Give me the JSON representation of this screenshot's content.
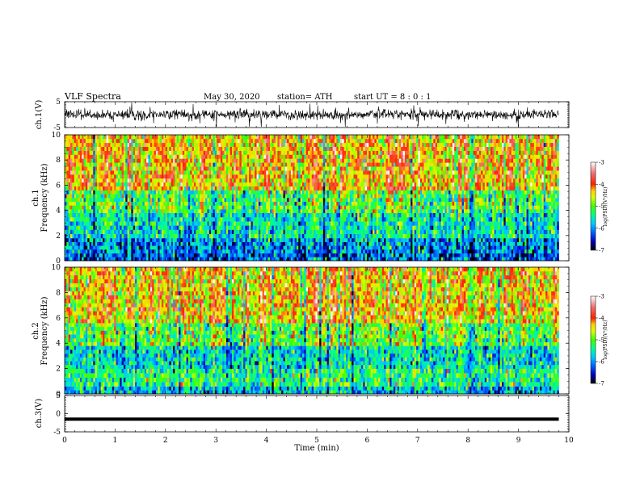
{
  "header": {
    "title": "VLF  Spectra",
    "date": "May 30, 2020",
    "station": "station= ATH",
    "start": "start  UT  =   8  : 0   : 1"
  },
  "chart_data": [
    {
      "type": "line",
      "name": "ch1-waveform",
      "ylabel": "ch.1(V)",
      "ylim": [
        -5,
        5
      ],
      "yticks": [
        5,
        -5
      ],
      "x_range": [
        0,
        9.8
      ],
      "description_values": {
        "mean": 0,
        "envelope_low": -3,
        "envelope_high": 3
      }
    },
    {
      "type": "heatmap",
      "name": "ch1-spectrogram",
      "ylabel": "ch.1\nFrequency  (kHz)",
      "ylabel_lines": [
        "ch.1",
        "Frequency  (kHz)"
      ],
      "ylim": [
        0,
        10
      ],
      "yticks": [
        0,
        2,
        4,
        6,
        8,
        10
      ],
      "x_range": [
        0,
        9.8
      ],
      "bands": [
        {
          "f_low": 0,
          "f_high": 0.6,
          "log_psd": -6.2
        },
        {
          "f_low": 0.6,
          "f_high": 1.8,
          "log_psd": -6.0
        },
        {
          "f_low": 1.8,
          "f_high": 3.8,
          "log_psd": -5.5
        },
        {
          "f_low": 3.8,
          "f_high": 5.6,
          "log_psd": -5.0
        },
        {
          "f_low": 5.6,
          "f_high": 10,
          "log_psd": -4.2
        }
      ]
    },
    {
      "type": "heatmap",
      "name": "ch2-spectrogram",
      "ylabel": "ch.2\nFrequency  (kHz)",
      "ylabel_lines": [
        "ch.2",
        "Frequency  (kHz)"
      ],
      "ylim": [
        0,
        10
      ],
      "yticks": [
        0,
        2,
        4,
        6,
        8,
        10
      ],
      "x_range": [
        0,
        9.8
      ],
      "bands": [
        {
          "f_low": 0,
          "f_high": 0.6,
          "log_psd": -5.8
        },
        {
          "f_low": 0.6,
          "f_high": 2.0,
          "log_psd": -5.3
        },
        {
          "f_low": 2.0,
          "f_high": 3.8,
          "log_psd": -5.6
        },
        {
          "f_low": 3.8,
          "f_high": 5.6,
          "log_psd": -5.0
        },
        {
          "f_low": 5.6,
          "f_high": 10,
          "log_psd": -4.3
        }
      ]
    },
    {
      "type": "line",
      "name": "ch3-waveform",
      "ylabel": "ch.3(V)",
      "ylim": [
        -5,
        5
      ],
      "yticks": [
        5,
        0,
        -5
      ],
      "x_range": [
        0,
        9.8
      ],
      "constant_value": -1.5
    }
  ],
  "xaxis": {
    "label": "Time  (min)",
    "xlim": [
      0,
      10
    ],
    "ticks": [
      0,
      1,
      2,
      3,
      4,
      5,
      6,
      7,
      8,
      9,
      10
    ]
  },
  "colorbar": {
    "label": "log(PSD)(V²/Hz)",
    "range": [
      -7,
      -3
    ],
    "ticks": [
      -3,
      -4,
      -5,
      -6,
      -7
    ],
    "stops": [
      {
        "v": -7.0,
        "color": "#000000"
      },
      {
        "v": -6.6,
        "color": "#0000c0"
      },
      {
        "v": -6.2,
        "color": "#0060ff"
      },
      {
        "v": -5.8,
        "color": "#00c8ff"
      },
      {
        "v": -5.4,
        "color": "#00ff90"
      },
      {
        "v": -5.0,
        "color": "#40ff00"
      },
      {
        "v": -4.6,
        "color": "#d8ff00"
      },
      {
        "v": -4.3,
        "color": "#ffd000"
      },
      {
        "v": -4.0,
        "color": "#ff2000"
      },
      {
        "v": -3.5,
        "color": "#f07070"
      },
      {
        "v": -3.0,
        "color": "#ffffff"
      }
    ]
  }
}
